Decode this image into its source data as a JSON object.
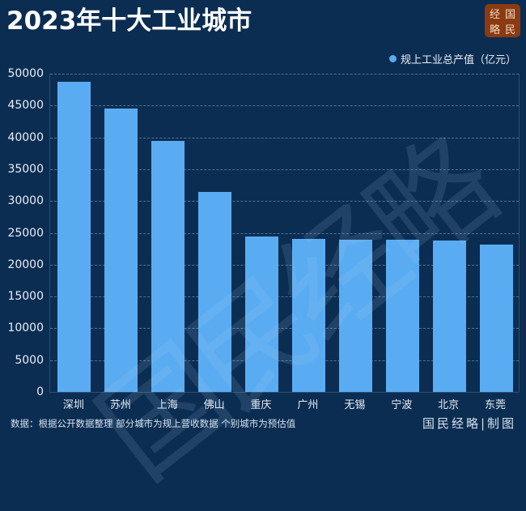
{
  "header": {
    "title": "2023年十大工业城市",
    "logo_chars": [
      "经",
      "国",
      "略",
      "民"
    ]
  },
  "legend": {
    "label": "规上工业总产值（亿元）",
    "color": "#5aacf2"
  },
  "watermark": "国民经略",
  "footer": {
    "source": "数据：根据公开数据整理 部分城市为规上营收数据 个别城市为预估值",
    "credit": "国民经略|制图"
  },
  "colors": {
    "background": "#0b2d52",
    "bar": "#5aacf2",
    "logo_bg": "#8b3a12"
  },
  "chart_data": {
    "type": "bar",
    "title": "2023年十大工业城市",
    "xlabel": "",
    "ylabel": "",
    "categories": [
      "深圳",
      "苏州",
      "上海",
      "佛山",
      "重庆",
      "广州",
      "无锡",
      "宁波",
      "北京",
      "东莞"
    ],
    "series": [
      {
        "name": "规上工业总产值（亿元）",
        "values": [
          48700,
          44500,
          39500,
          31400,
          24400,
          24000,
          23900,
          23900,
          23800,
          23100
        ]
      }
    ],
    "ylim": [
      0,
      50000
    ],
    "yticks": [
      "0",
      "5000",
      "10000",
      "15000",
      "20000",
      "25000",
      "30000",
      "35000",
      "40000",
      "45000",
      "50000"
    ],
    "grid": true,
    "legend_position": "top-right"
  }
}
